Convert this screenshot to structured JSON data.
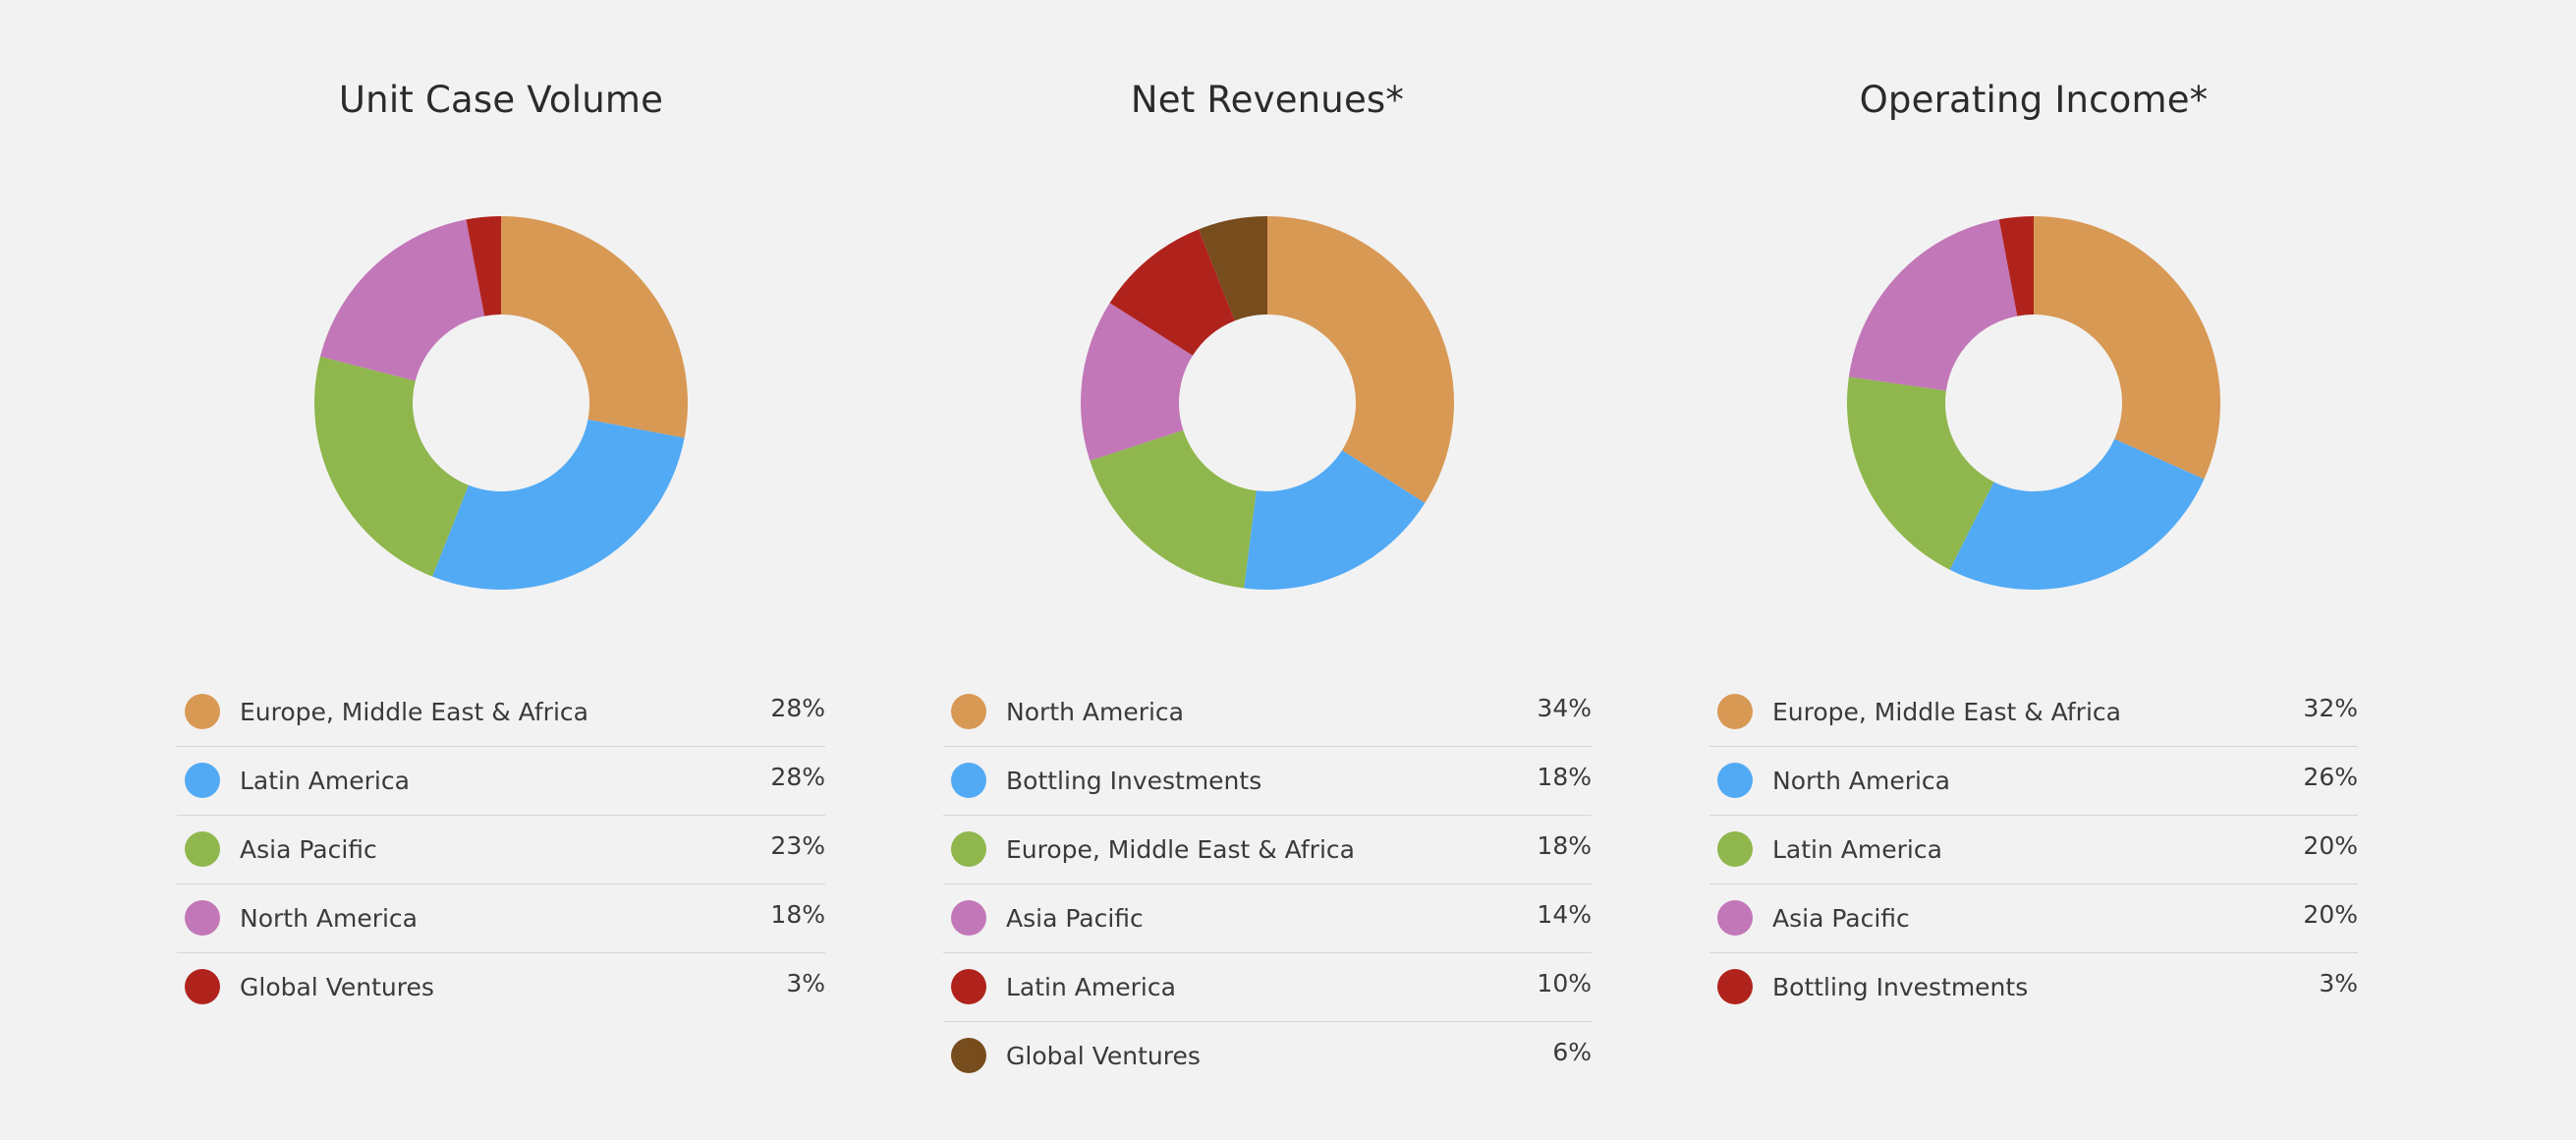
{
  "chart_data": [
    {
      "type": "pie",
      "title": "Unit Case Volume",
      "categories": [
        "Europe, Middle East & Africa",
        "Latin America",
        "Asia Pacific",
        "North America",
        "Global Ventures"
      ],
      "values": [
        28,
        28,
        23,
        18,
        3
      ],
      "labels": [
        "28%",
        "28%",
        "23%",
        "18%",
        "3%"
      ],
      "colors": [
        "#d89955",
        "#52aaf5",
        "#8fb74d",
        "#c277b8",
        "#b0231d"
      ],
      "unit": "%"
    },
    {
      "type": "pie",
      "title": "Net Revenues*",
      "categories": [
        "North America",
        "Bottling Investments",
        "Europe, Middle East & Africa",
        "Asia Pacific",
        "Latin America",
        "Global Ventures"
      ],
      "values": [
        34,
        18,
        18,
        14,
        10,
        6
      ],
      "labels": [
        "34%",
        "18%",
        "18%",
        "14%",
        "10%",
        "6%"
      ],
      "colors": [
        "#d89955",
        "#52aaf5",
        "#8fb74d",
        "#c277b8",
        "#b0231d",
        "#774d1e"
      ],
      "unit": "%"
    },
    {
      "type": "pie",
      "title": "Operating Income*",
      "categories": [
        "Europe, Middle East & Africa",
        "North America",
        "Latin America",
        "Asia Pacific",
        "Bottling Investments"
      ],
      "values": [
        32,
        26,
        20,
        20,
        3
      ],
      "labels": [
        "32%",
        "26%",
        "20%",
        "20%",
        "3%"
      ],
      "colors": [
        "#d89955",
        "#52aaf5",
        "#8fb74d",
        "#c277b8",
        "#b0231d"
      ],
      "unit": "%"
    }
  ]
}
